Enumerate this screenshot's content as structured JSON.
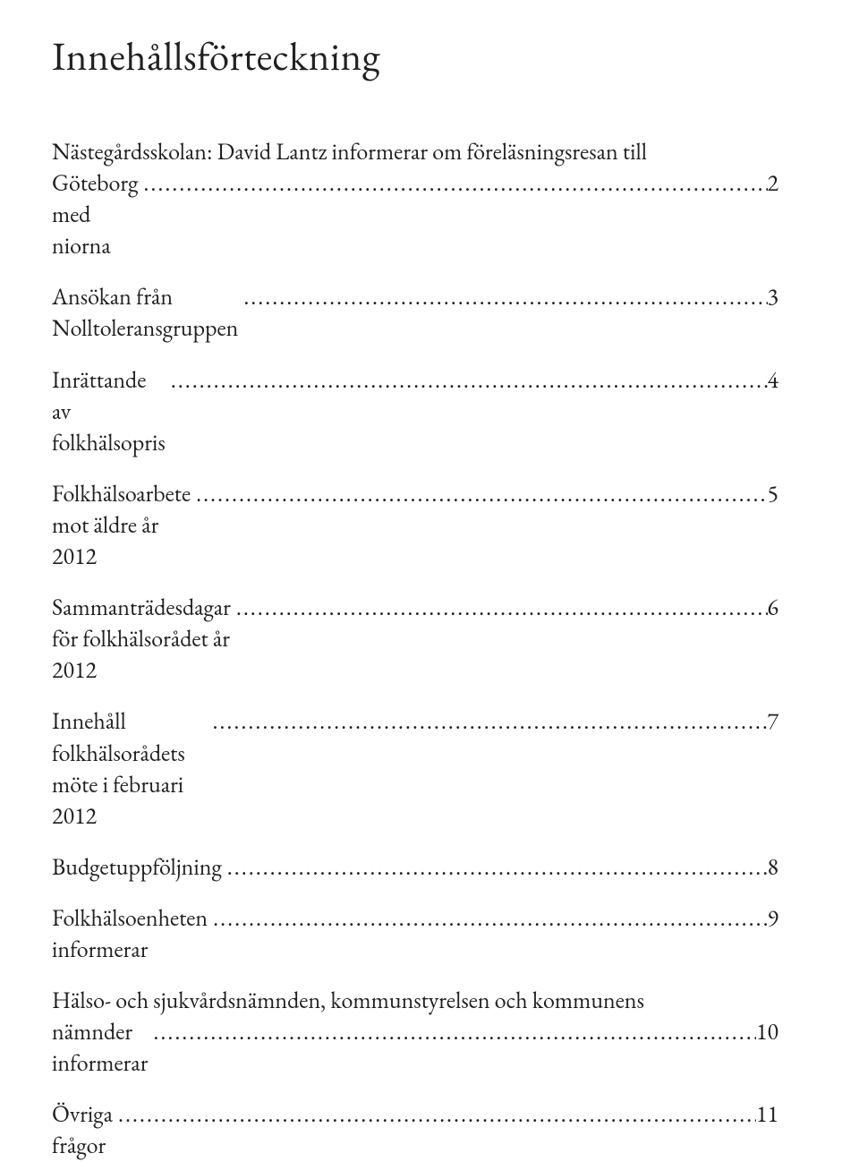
{
  "title": "Innehållsförteckning",
  "leader_dots": ".....................................................................................................................................................................................................",
  "entries": [
    {
      "label_line1": "Nästegårdsskolan: David Lantz informerar om föreläsningsresan till",
      "label_line2": "Göteborg med niorna",
      "page": "2",
      "multiline": true
    },
    {
      "label": "Ansökan från Nolltoleransgruppen",
      "page": "3",
      "multiline": false
    },
    {
      "label": "Inrättande av folkhälsopris",
      "page": "4",
      "multiline": false
    },
    {
      "label": "Folkhälsoarbete mot äldre år 2012",
      "page": "5",
      "multiline": false
    },
    {
      "label": "Sammanträdesdagar för folkhälsorådet år 2012",
      "page": "6",
      "multiline": false
    },
    {
      "label": "Innehåll folkhälsorådets möte i februari 2012",
      "page": "7",
      "multiline": false
    },
    {
      "label": "Budgetuppföljning",
      "page": "8",
      "multiline": false
    },
    {
      "label": "Folkhälsoenheten informerar",
      "page": "9",
      "multiline": false
    },
    {
      "label_line1": "Hälso- och sjukvårdsnämnden, kommunstyrelsen och kommunens",
      "label_line2": "nämnder informerar",
      "page": "10",
      "multiline": true
    },
    {
      "label": "Övriga frågor",
      "page": "11",
      "multiline": false
    }
  ]
}
